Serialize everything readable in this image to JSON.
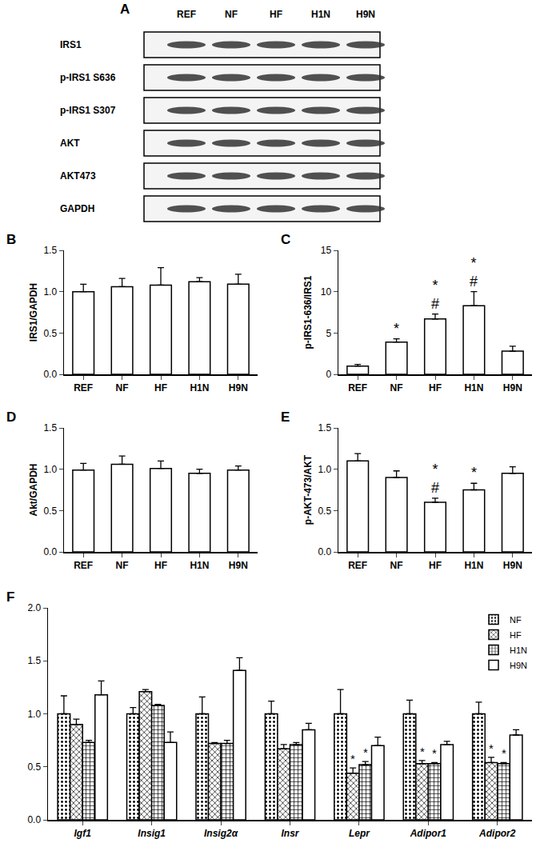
{
  "blot": {
    "panel": "A",
    "lanes": [
      "REF",
      "NF",
      "HF",
      "H1N",
      "H9N"
    ],
    "rows": [
      "IRS1",
      "p-IRS1 S636",
      "p-IRS1 S307",
      "AKT",
      "AKT473",
      "GAPDH"
    ]
  },
  "chart_data": [
    {
      "panel": "B",
      "type": "bar",
      "y_label": "IRS1/GAPDH",
      "categories": [
        "REF",
        "NF",
        "HF",
        "H1N",
        "H9N"
      ],
      "values": [
        1.0,
        1.06,
        1.08,
        1.12,
        1.09
      ],
      "errors": [
        0.09,
        0.1,
        0.21,
        0.05,
        0.12
      ],
      "color": "#ffffff",
      "ylim": [
        0,
        1.5
      ],
      "yticks": [
        {
          "value": 0,
          "label": "0.0"
        },
        {
          "value": 0.5,
          "label": "0.5"
        },
        {
          "value": 1,
          "label": "1.0"
        },
        {
          "value": 1.5,
          "label": "1.5"
        }
      ],
      "grid": false
    },
    {
      "panel": "C",
      "type": "bar",
      "y_label": "p-IRS1-636/IRS1",
      "categories": [
        "REF",
        "NF",
        "HF",
        "H1N",
        "H9N"
      ],
      "values": [
        1.0,
        3.9,
        6.7,
        8.3,
        2.8
      ],
      "errors": [
        0.2,
        0.4,
        0.6,
        1.7,
        0.6
      ],
      "marks": [
        null,
        [
          "*"
        ],
        [
          "*",
          "#"
        ],
        [
          "*",
          "#"
        ],
        null
      ],
      "color": "#ffffff",
      "ylim": [
        0,
        15
      ],
      "yticks": [
        0,
        5,
        10,
        15
      ],
      "grid": false
    },
    {
      "panel": "D",
      "type": "bar",
      "y_label": "Akt/GAPDH",
      "categories": [
        "REF",
        "NF",
        "HF",
        "H1N",
        "H9N"
      ],
      "values": [
        0.99,
        1.06,
        1.01,
        0.95,
        0.99
      ],
      "errors": [
        0.08,
        0.1,
        0.09,
        0.05,
        0.05
      ],
      "color": "#ffffff",
      "ylim": [
        0,
        1.5
      ],
      "yticks": [
        {
          "value": 0,
          "label": "0.0"
        },
        {
          "value": 0.5,
          "label": "0.5"
        },
        {
          "value": 1,
          "label": "1.0"
        },
        {
          "value": 1.5,
          "label": "1.5"
        }
      ],
      "grid": false
    },
    {
      "panel": "E",
      "type": "bar",
      "y_label": "p-AKT-473/AKT",
      "categories": [
        "REF",
        "NF",
        "HF",
        "H1N",
        "H9N"
      ],
      "values": [
        1.1,
        0.9,
        0.6,
        0.75,
        0.95
      ],
      "errors": [
        0.09,
        0.08,
        0.05,
        0.08,
        0.08
      ],
      "marks": [
        null,
        null,
        [
          "*",
          "#"
        ],
        [
          "*"
        ],
        null
      ],
      "color": "#ffffff",
      "ylim": [
        0,
        1.5
      ],
      "yticks": [
        {
          "value": 0,
          "label": "0.0"
        },
        {
          "value": 0.5,
          "label": "0.5"
        },
        {
          "value": 1,
          "label": "1.0"
        },
        {
          "value": 1.5,
          "label": "1.5"
        }
      ],
      "grid": false
    },
    {
      "panel": "F",
      "type": "bar",
      "categories": [
        "Igf1",
        "Insig1",
        "Insig2α",
        "Insr",
        "Lepr",
        "Adipor1",
        "Adipor2"
      ],
      "series": [
        {
          "name": "NF",
          "color": "#ffffff",
          "marker": "dots",
          "values": [
            1.0,
            1.0,
            1.0,
            1.0,
            1.0,
            1.0,
            1.0
          ],
          "errors": [
            0.17,
            0.06,
            0.16,
            0.12,
            0.23,
            0.13,
            0.11
          ],
          "marks": [
            null,
            null,
            null,
            null,
            null,
            null,
            null
          ]
        },
        {
          "name": "HF",
          "color": "#ffffff",
          "marker": "crosshatch",
          "values": [
            0.9,
            1.21,
            0.72,
            0.67,
            0.44,
            0.53,
            0.54
          ],
          "errors": [
            0.05,
            0.02,
            0.01,
            0.04,
            0.05,
            0.03,
            0.05
          ],
          "marks": [
            null,
            null,
            null,
            null,
            [
              "*"
            ],
            [
              "*"
            ],
            [
              "*"
            ]
          ]
        },
        {
          "name": "H1N",
          "color": "#ffffff",
          "marker": "checks",
          "values": [
            0.73,
            1.08,
            0.72,
            0.71,
            0.52,
            0.53,
            0.53
          ],
          "errors": [
            0.02,
            0.01,
            0.03,
            0.02,
            0.03,
            0.01,
            0.01
          ],
          "marks": [
            null,
            null,
            null,
            null,
            [
              "*"
            ],
            [
              "*"
            ],
            [
              "*"
            ]
          ]
        },
        {
          "name": "H9N",
          "color": "#ffffff",
          "marker": "plain",
          "values": [
            1.18,
            0.73,
            1.41,
            0.85,
            0.7,
            0.71,
            0.8
          ],
          "errors": [
            0.13,
            0.1,
            0.12,
            0.06,
            0.08,
            0.03,
            0.05
          ],
          "marks": [
            null,
            null,
            null,
            null,
            null,
            null,
            null
          ]
        }
      ],
      "ylim": [
        0,
        2
      ],
      "yticks": [
        {
          "value": 0,
          "label": "0.0"
        },
        {
          "value": 0.5,
          "label": "0.5"
        },
        {
          "value": 1,
          "label": "1.0"
        },
        {
          "value": 1.5,
          "label": "1.5"
        },
        {
          "value": 2,
          "label": "2.0"
        }
      ],
      "legend": "top right",
      "grid": false
    }
  ]
}
